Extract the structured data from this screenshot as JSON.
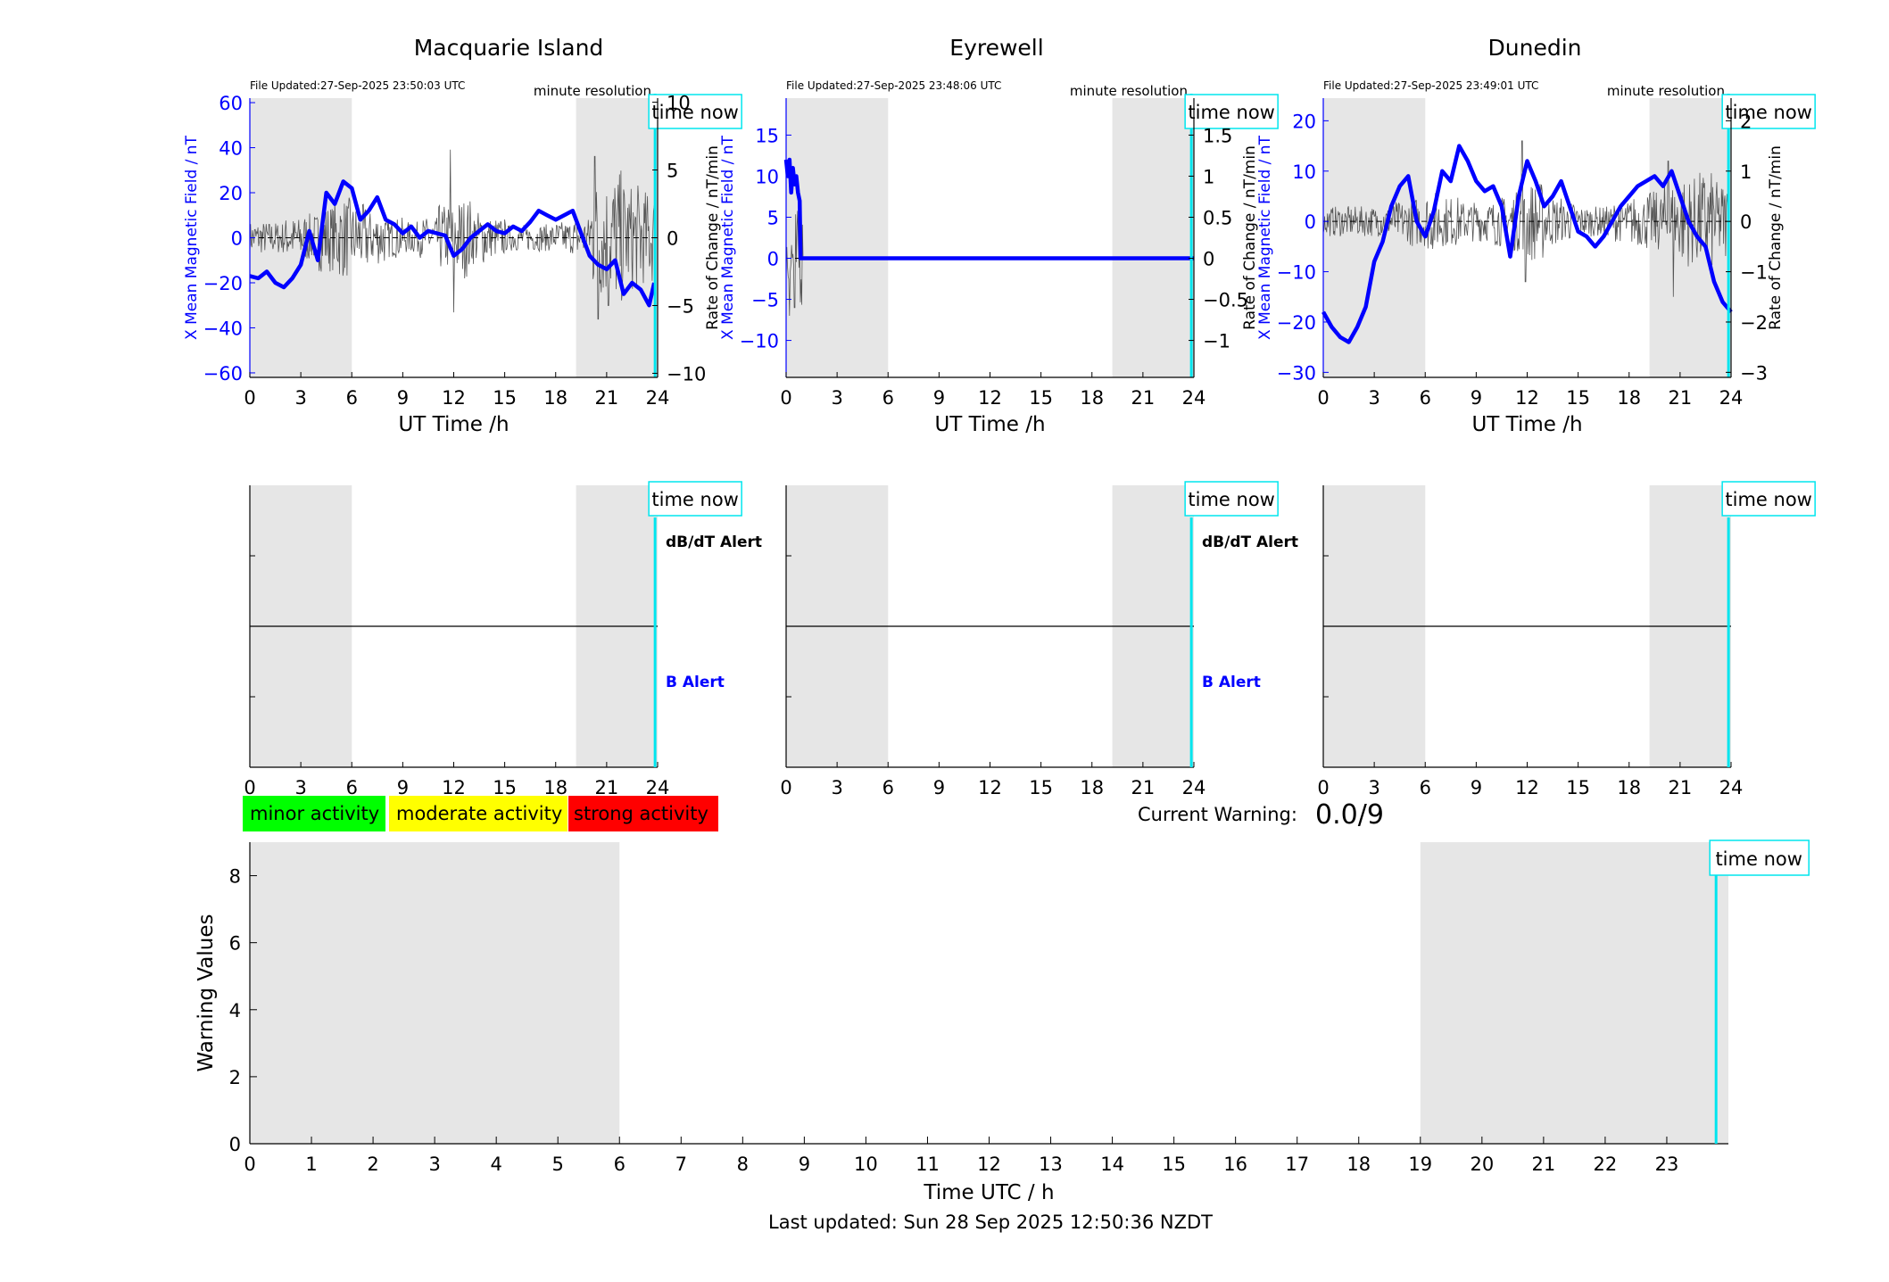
{
  "footer": {
    "last_updated": "Last updated: Sun 28 Sep 2025 12:50:36 NZDT"
  },
  "legend": {
    "items": [
      {
        "label": "minor activity",
        "color": "#00ff00"
      },
      {
        "label": "moderate activity",
        "color": "#ffff00"
      },
      {
        "label": "strong activity",
        "color": "#ff0000"
      }
    ]
  },
  "warning": {
    "label": "Current Warning:",
    "value": "0.0/9"
  },
  "colors": {
    "accent": "#0000ff",
    "time_now": "#00e5ee",
    "shade": "#e6e6e6",
    "roc_trace": "#555555"
  },
  "chart_data": [
    {
      "type": "line",
      "title": "Macquarie Island",
      "file_updated": "File Updated:27-Sep-2025 23:50:03 UTC",
      "resolution": "minute resolution",
      "time_now_label": "time now",
      "xlabel": "UT Time /h",
      "ylabel_left": "X Mean Magnetic Field / nT",
      "ylabel_right": "",
      "xlim": [
        0,
        24
      ],
      "xticks": [
        0,
        3,
        6,
        9,
        12,
        15,
        18,
        21,
        24
      ],
      "ylim_left": [
        -62,
        62
      ],
      "yticks_left": [
        -60,
        -40,
        -20,
        0,
        20,
        40,
        60
      ],
      "ylim_right": [
        -10.3,
        10.3
      ],
      "yticks_right": [
        -10,
        -5,
        0,
        5,
        10
      ],
      "shaded_ranges": [
        [
          0,
          6
        ],
        [
          19.2,
          24
        ]
      ],
      "time_now": 23.85,
      "series": [
        {
          "role": "field",
          "axis": "left",
          "x": [
            0,
            0.5,
            1,
            1.5,
            2,
            2.5,
            3,
            3.5,
            4,
            4.5,
            5,
            5.5,
            6,
            6.5,
            7,
            7.5,
            8,
            8.5,
            9,
            9.5,
            10,
            10.5,
            11,
            11.5,
            12,
            12.5,
            13,
            13.5,
            14,
            14.5,
            15,
            15.5,
            16,
            16.5,
            17,
            17.5,
            18,
            18.5,
            19,
            19.5,
            20,
            20.5,
            21,
            21.5,
            22,
            22.5,
            23,
            23.5,
            23.8
          ],
          "y": [
            -17,
            -18,
            -15,
            -20,
            -22,
            -18,
            -12,
            3,
            -10,
            20,
            15,
            25,
            22,
            8,
            12,
            18,
            8,
            6,
            2,
            5,
            0,
            3,
            2,
            1,
            -8,
            -5,
            0,
            3,
            6,
            3,
            2,
            5,
            3,
            7,
            12,
            10,
            8,
            10,
            12,
            2,
            -8,
            -12,
            -14,
            -10,
            -25,
            -20,
            -23,
            -30,
            -20
          ]
        }
      ],
      "roc": {
        "axis": "right",
        "amplitude_by_hour": [
          1.2,
          1.2,
          1.5,
          1.8,
          2.5,
          3,
          2.5,
          2,
          1.5,
          1.2,
          1.5,
          2.5,
          3,
          2,
          1.5,
          1,
          1,
          1,
          1.2,
          1.5,
          4.5,
          5,
          4,
          3.5,
          2.5
        ],
        "spikes": [
          [
            11.8,
            6.5
          ],
          [
            12.0,
            -5.5
          ],
          [
            20.3,
            6
          ],
          [
            20.5,
            -6
          ],
          [
            21.1,
            -5
          ]
        ]
      },
      "dbdt_label": "dB/dT Alert",
      "b_label": "B Alert"
    },
    {
      "type": "line",
      "title": "Eyrewell",
      "file_updated": "File Updated:27-Sep-2025 23:48:06 UTC",
      "resolution": "minute resolution",
      "time_now_label": "time now",
      "xlabel": "UT Time /h",
      "ylabel_left": "X Mean Magnetic Field / nT",
      "ylabel_right": "",
      "ylabel_left_offset": "Rate of Change / nT/min",
      "xlim": [
        0,
        24
      ],
      "xticks": [
        0,
        3,
        6,
        9,
        12,
        15,
        18,
        21,
        24
      ],
      "ylim_left": [
        -14.5,
        19.5
      ],
      "yticks_left": [
        -10,
        -5,
        0,
        5,
        10,
        15
      ],
      "ylim_right": [
        -1.45,
        1.95
      ],
      "yticks_right": [
        -1,
        -0.5,
        0,
        0.5,
        1,
        1.5
      ],
      "shaded_ranges": [
        [
          0,
          6
        ],
        [
          19.2,
          24
        ]
      ],
      "time_now": 23.85,
      "series": [
        {
          "role": "field",
          "axis": "left",
          "x": [
            0,
            0.1,
            0.2,
            0.3,
            0.4,
            0.5,
            0.6,
            0.7,
            0.8,
            0.85,
            0.9,
            1.0,
            6,
            12,
            18,
            24
          ],
          "y": [
            12,
            10,
            12,
            8,
            11,
            9,
            10,
            8,
            7,
            0,
            0,
            0,
            0,
            0,
            0,
            0
          ]
        }
      ],
      "roc": {
        "axis": "right",
        "amplitude_by_hour": [
          0.6,
          0
        ],
        "spikes": [
          [
            0.2,
            -0.7
          ],
          [
            0.5,
            -0.6
          ]
        ]
      },
      "dbdt_label": "dB/dT Alert",
      "b_label": "B Alert"
    },
    {
      "type": "line",
      "title": "Dunedin",
      "file_updated": "File Updated:27-Sep-2025 23:49:01 UTC",
      "resolution": "minute resolution",
      "time_now_label": "time now",
      "xlabel": "UT Time /h",
      "ylabel_left": "X Mean Magnetic Field / nT",
      "ylabel_left_offset": "Rate of Change / nT/min",
      "ylabel_right": "Rate of Change / nT/min",
      "xlim": [
        0,
        24
      ],
      "xticks": [
        0,
        3,
        6,
        9,
        12,
        15,
        18,
        21,
        24
      ],
      "ylim_left": [
        -31,
        24.5
      ],
      "yticks_left": [
        -30,
        -20,
        -10,
        0,
        10,
        20
      ],
      "ylim_right": [
        -3.1,
        2.45
      ],
      "yticks_right": [
        -3,
        -2,
        -1,
        0,
        1,
        2
      ],
      "shaded_ranges": [
        [
          0,
          6
        ],
        [
          19.2,
          24
        ]
      ],
      "time_now": 23.85,
      "series": [
        {
          "role": "field",
          "axis": "left",
          "x": [
            0,
            0.5,
            1,
            1.5,
            2,
            2.5,
            3,
            3.5,
            4,
            4.5,
            5,
            5.5,
            6,
            6.5,
            7,
            7.5,
            8,
            8.5,
            9,
            9.5,
            10,
            10.5,
            11,
            11.5,
            12,
            12.5,
            13,
            13.5,
            14,
            14.5,
            15,
            15.5,
            16,
            16.5,
            17,
            17.5,
            18,
            18.5,
            19,
            19.5,
            20,
            20.5,
            21,
            21.5,
            22,
            22.5,
            23,
            23.5,
            24
          ],
          "y": [
            -18,
            -21,
            -23,
            -24,
            -21,
            -17,
            -8,
            -4,
            3,
            7,
            9,
            0,
            -3,
            2,
            10,
            8,
            15,
            12,
            8,
            6,
            7,
            3,
            -7,
            5,
            12,
            8,
            3,
            5,
            8,
            3,
            -2,
            -3,
            -5,
            -3,
            0,
            3,
            5,
            7,
            8,
            9,
            7,
            10,
            5,
            0,
            -3,
            -5,
            -12,
            -16,
            -18
          ]
        }
      ],
      "roc": {
        "axis": "right",
        "amplitude_by_hour": [
          0.3,
          0.3,
          0.3,
          0.3,
          0.4,
          0.5,
          0.6,
          0.5,
          0.4,
          0.4,
          0.5,
          0.6,
          0.8,
          0.5,
          0.4,
          0.3,
          0.3,
          0.4,
          0.5,
          0.6,
          0.8,
          0.9,
          1.0,
          0.8,
          0.6
        ],
        "spikes": [
          [
            11.7,
            1.6
          ],
          [
            11.9,
            -1.2
          ],
          [
            20.3,
            1.2
          ],
          [
            20.6,
            -1.5
          ]
        ]
      }
    },
    {
      "type": "line",
      "title": "",
      "xlabel": "Time UTC / h",
      "ylabel": "Warning Values",
      "xlim": [
        0,
        24
      ],
      "xticks": [
        0,
        1,
        2,
        3,
        4,
        5,
        6,
        7,
        8,
        9,
        10,
        11,
        12,
        13,
        14,
        15,
        16,
        17,
        18,
        19,
        20,
        21,
        22,
        23
      ],
      "ylim": [
        0,
        9
      ],
      "yticks": [
        0,
        2,
        4,
        6,
        8
      ],
      "shaded_ranges": [
        [
          0,
          6
        ],
        [
          19,
          24
        ]
      ],
      "time_now": 23.8,
      "time_now_label": "time now",
      "series": []
    }
  ]
}
